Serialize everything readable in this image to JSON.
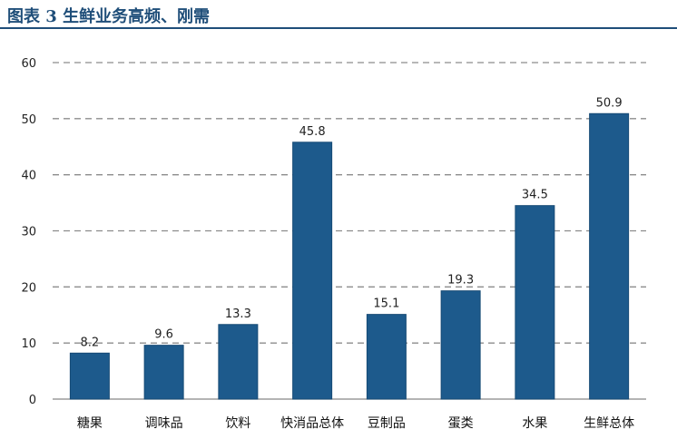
{
  "figure": {
    "title": "图表 3  生鲜业务高频、刚需"
  },
  "colors": {
    "bar": "#1d5a8c",
    "bar_edge": "#164a75",
    "grid": "#8c8c8c",
    "axis": "#888888",
    "title": "#1f4e79"
  },
  "chart_data": {
    "type": "bar",
    "title": "生鲜业务高频、刚需",
    "xlabel": "",
    "ylabel": "",
    "categories": [
      "糖果",
      "调味品",
      "饮料",
      "快消品总体",
      "豆制品",
      "蛋类",
      "水果",
      "生鲜总体"
    ],
    "values": [
      8.2,
      9.6,
      13.3,
      45.8,
      15.1,
      19.3,
      34.5,
      50.9
    ],
    "value_labels": [
      "8.2",
      "9.6",
      "13.3",
      "45.8",
      "15.1",
      "19.3",
      "34.5",
      "50.9"
    ],
    "ylim": [
      0,
      60
    ],
    "yticks": [
      0,
      10,
      20,
      30,
      40,
      50,
      60
    ],
    "grid": true,
    "legend": "none"
  }
}
